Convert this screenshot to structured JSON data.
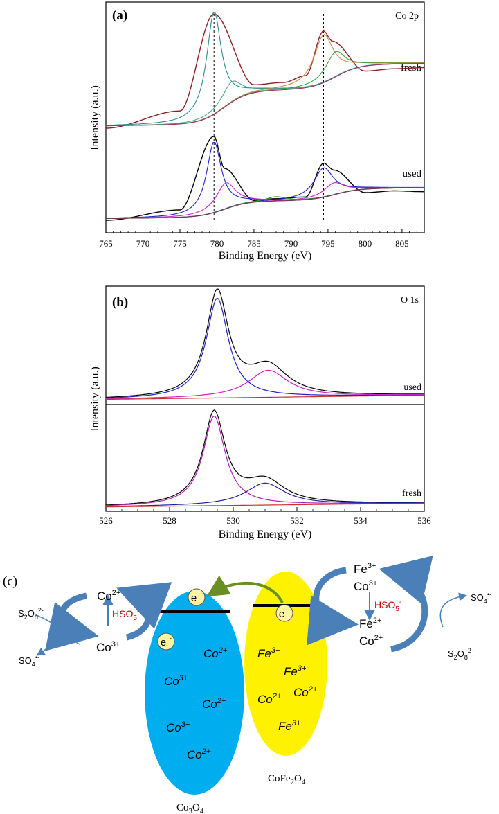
{
  "chart_data": [
    {
      "type": "line",
      "panel_label": "(a)",
      "title": "Co 2p",
      "xlabel": "Binding Energy (eV)",
      "ylabel": "Intensity (a.u.)",
      "xlim": [
        765,
        808
      ],
      "xticks": [
        765,
        770,
        775,
        780,
        785,
        790,
        795,
        800,
        805
      ],
      "reference_lines": [
        779.6,
        794.4
      ],
      "groups": [
        {
          "label": "fresh",
          "series": [
            {
              "color": "#8B2020",
              "curve": "envelope",
              "values": {
                "x": [
                  765,
                  775,
                  779.6,
                  785,
                  789.0,
                  792,
                  794.4,
                  795.6,
                  800,
                  804.0,
                  808
                ],
                "y": [
                  0.0,
                  0.15,
                  1.0,
                  0.38,
                  0.4,
                  0.46,
                  0.85,
                  0.76,
                  0.5,
                  0.52,
                  0.53
                ]
              }
            },
            {
              "color": "#2E8B8B",
              "curve": "Co3+ 2p3/2",
              "peak_x": 779.6,
              "peak_height": 0.9
            },
            {
              "color": "#4BA88B",
              "curve": "satellite",
              "peak_x": 782.0,
              "peak_height": 0.18
            },
            {
              "color": "#C58A4A",
              "curve": "Co3+ 2p1/2",
              "peak_x": 794.4,
              "peak_height": 0.42
            },
            {
              "color": "#3FA43F",
              "curve": "Co2+ 2p1/2",
              "peak_x": 796.0,
              "peak_height": 0.22
            },
            {
              "color": "#A0306A",
              "curve": "background"
            }
          ]
        },
        {
          "label": "used",
          "series": [
            {
              "color": "#000000",
              "curve": "envelope",
              "values": {
                "x": [
                  765,
                  775,
                  779.6,
                  781.0,
                  785,
                  788.0,
                  792,
                  794.4,
                  795.8,
                  800,
                  804.0,
                  808
                ],
                "y": [
                  0.0,
                  0.12,
                  0.97,
                  0.6,
                  0.23,
                  0.25,
                  0.27,
                  0.66,
                  0.58,
                  0.32,
                  0.34,
                  0.33
                ]
              }
            },
            {
              "color": "#2020C8",
              "curve": "Co3+ 2p3/2",
              "peak_x": 779.6,
              "peak_height": 0.82
            },
            {
              "color": "#D020D0",
              "curve": "Co2+ 2p3/2",
              "peak_x": 781.2,
              "peak_height": 0.3
            },
            {
              "color": "#2020C8",
              "curve": "Co3+ 2p1/2",
              "peak_x": 794.4,
              "peak_height": 0.34
            },
            {
              "color": "#D020D0",
              "curve": "Co2+ 2p1/2",
              "peak_x": 795.8,
              "peak_height": 0.14
            },
            {
              "color": "#20A020",
              "curve": "satellite",
              "peak_x": 788.0,
              "peak_height": 0.05
            },
            {
              "color": "#7A3050",
              "curve": "background"
            }
          ]
        }
      ]
    },
    {
      "type": "line",
      "panel_label": "(b)",
      "title": "O 1s",
      "xlabel": "Binding Energy (eV)",
      "ylabel": "Intensity (a.u.)",
      "xlim": [
        526,
        536
      ],
      "xticks": [
        526,
        528,
        530,
        532,
        534,
        536
      ],
      "groups": [
        {
          "label": "used",
          "series": [
            {
              "color": "#000000",
              "curve": "envelope",
              "peaks": [
                {
                  "x": 529.5,
                  "h": 1.0
                },
                {
                  "x": 531.1,
                  "h": 0.28
                }
              ]
            },
            {
              "color": "#2020C8",
              "curve": "lattice O",
              "peak_x": 529.5,
              "peak_height": 0.96
            },
            {
              "color": "#D020D0",
              "curve": "surface O",
              "peak_x": 531.1,
              "peak_height": 0.26
            },
            {
              "color": "#C83030",
              "curve": "background"
            }
          ]
        },
        {
          "label": "fresh",
          "series": [
            {
              "color": "#000000",
              "curve": "envelope",
              "peaks": [
                {
                  "x": 529.4,
                  "h": 1.0
                },
                {
                  "x": 531.0,
                  "h": 0.25
                }
              ]
            },
            {
              "color": "#B020B0",
              "curve": "lattice O",
              "peak_x": 529.4,
              "peak_height": 0.98
            },
            {
              "color": "#2020A0",
              "curve": "surface O",
              "peak_x": 531.0,
              "peak_height": 0.24
            },
            {
              "color": "#C83030",
              "curve": "background"
            }
          ]
        }
      ]
    }
  ],
  "scheme": {
    "panel_label": "(c)",
    "left_cycle": {
      "top_ion": "Co",
      "top_sup": "2+",
      "bottom_ion": "Co",
      "bottom_sup": "3+",
      "oxidant": "HSO",
      "oxidant_sub": "5",
      "oxidant_sup": "-",
      "persulfate": "S",
      "persulfate_sub1": "2",
      "persulfate_o": "O",
      "persulfate_sub2": "8",
      "persulfate_sup": "2-",
      "radical": "SO",
      "radical_sub": "4",
      "radical_sup": "•-"
    },
    "co3o4": {
      "electron": "e",
      "electron_sup": "-",
      "ions": [
        {
          "ion": "Co",
          "sup": "2+"
        },
        {
          "ion": "Co",
          "sup": "3+"
        },
        {
          "ion": "Co",
          "sup": "2+"
        },
        {
          "ion": "Co",
          "sup": "3+"
        },
        {
          "ion": "Co",
          "sup": "2+"
        }
      ],
      "label": "Co",
      "label_sub1": "3",
      "label_o": "O",
      "label_sub2": "4"
    },
    "cofe2o4": {
      "electron": "e",
      "electron_sup": "-",
      "ions": [
        {
          "ion": "Fe",
          "sup": "3+"
        },
        {
          "ion": "Fe",
          "sup": "3+"
        },
        {
          "ion": "Co",
          "sup": "2+"
        },
        {
          "ion": "Co",
          "sup": "2+"
        },
        {
          "ion": "Fe",
          "sup": "3+"
        }
      ],
      "label": "CoFe",
      "label_sub1": "2",
      "label_o": "O",
      "label_sub2": "4"
    },
    "right_cycle": {
      "top_ion1": "Fe",
      "top_sup1": "3+",
      "top_ion2": "Co",
      "top_sup2": "3+",
      "bottom_ion1": "Fe",
      "bottom_sup1": "2+",
      "bottom_ion2": "Co",
      "bottom_sup2": "2+",
      "oxidant": "HSO",
      "oxidant_sub": "5",
      "oxidant_sup": "-",
      "radical": "SO",
      "radical_sub": "4",
      "radical_sup": "•-",
      "persulfate": "S",
      "persulfate_sub1": "2",
      "persulfate_o": "O",
      "persulfate_sub2": "8",
      "persulfate_sup": "2-"
    },
    "colors": {
      "co3o4": "#00AEEF",
      "cofe2o4": "#FFF200",
      "arrow": "#4A7FB8",
      "electron_arrow": "#6B8E23",
      "oxidant_text": "#C00000"
    }
  }
}
